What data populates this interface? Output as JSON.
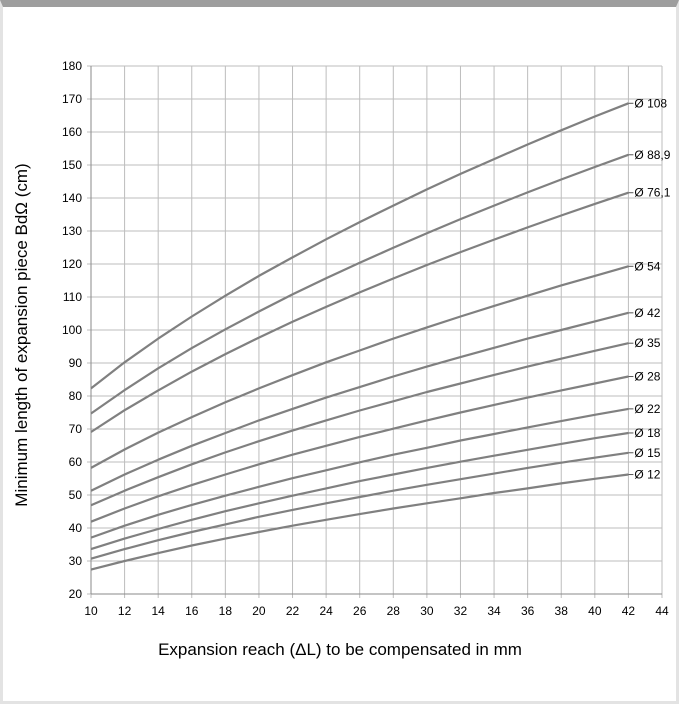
{
  "chart_data": {
    "type": "line",
    "xlabel": "Expansion reach (ΔL) to be compensated in mm",
    "ylabel": "Minimum length of expansion piece BdΩ (cm)",
    "xlim": [
      10,
      44
    ],
    "ylim": [
      20,
      180
    ],
    "xticks": [
      10,
      12,
      14,
      16,
      18,
      20,
      22,
      24,
      26,
      28,
      30,
      32,
      34,
      36,
      38,
      40,
      42,
      44
    ],
    "yticks": [
      20,
      30,
      40,
      50,
      60,
      70,
      80,
      90,
      100,
      110,
      120,
      130,
      140,
      150,
      160,
      170,
      180
    ],
    "grid": true,
    "line_color": "#808080",
    "x": [
      10,
      12,
      14,
      16,
      18,
      20,
      22,
      24,
      26,
      28,
      30,
      32,
      34,
      36,
      38,
      40,
      42
    ],
    "series": [
      {
        "name": "Ø 108",
        "values": [
          82.3,
          90.2,
          97.4,
          104.1,
          110.4,
          116.4,
          122.0,
          127.5,
          132.7,
          137.7,
          142.6,
          147.3,
          151.8,
          156.2,
          160.5,
          164.7,
          168.7
        ]
      },
      {
        "name": "Ø 88,9",
        "values": [
          74.7,
          81.8,
          88.4,
          94.5,
          100.2,
          105.6,
          110.8,
          115.7,
          120.4,
          124.9,
          129.3,
          133.6,
          137.7,
          141.7,
          145.6,
          149.4,
          153.1
        ]
      },
      {
        "name": "Ø 76,1",
        "values": [
          69.1,
          75.7,
          81.7,
          87.4,
          92.7,
          97.7,
          102.5,
          107.0,
          111.4,
          115.6,
          119.7,
          123.6,
          127.4,
          131.1,
          134.7,
          138.2,
          141.6
        ]
      },
      {
        "name": "Ø 54",
        "values": [
          58.2,
          63.8,
          68.9,
          73.6,
          78.1,
          82.3,
          86.3,
          90.2,
          93.8,
          97.4,
          100.8,
          104.1,
          107.3,
          110.4,
          113.5,
          116.4,
          119.3
        ]
      },
      {
        "name": "Ø 42",
        "values": [
          51.3,
          56.2,
          60.7,
          64.9,
          68.8,
          72.6,
          76.1,
          79.5,
          82.7,
          85.9,
          88.9,
          91.8,
          94.6,
          97.4,
          100.0,
          102.6,
          105.2
        ]
      },
      {
        "name": "Ø 35",
        "values": [
          46.9,
          51.3,
          55.4,
          59.3,
          62.9,
          66.3,
          69.5,
          72.6,
          75.6,
          78.4,
          81.2,
          83.8,
          86.4,
          88.9,
          91.3,
          93.7,
          96.0
        ]
      },
      {
        "name": "Ø 28",
        "values": [
          41.9,
          45.9,
          49.6,
          53.0,
          56.2,
          59.3,
          62.2,
          64.9,
          67.6,
          70.1,
          72.6,
          75.0,
          77.3,
          79.5,
          81.7,
          83.8,
          85.9
        ]
      },
      {
        "name": "Ø 22",
        "values": [
          37.1,
          40.7,
          44.0,
          47.0,
          49.8,
          52.5,
          55.1,
          57.5,
          59.9,
          62.2,
          64.3,
          66.5,
          68.5,
          70.5,
          72.4,
          74.3,
          76.1
        ]
      },
      {
        "name": "Ø 18",
        "values": [
          33.6,
          36.8,
          39.7,
          42.5,
          45.1,
          47.5,
          49.8,
          52.0,
          54.2,
          56.2,
          58.2,
          60.1,
          61.9,
          63.7,
          65.5,
          67.2,
          68.8
        ]
      },
      {
        "name": "Ø 15",
        "values": [
          30.7,
          33.6,
          36.3,
          38.8,
          41.1,
          43.4,
          45.5,
          47.5,
          49.4,
          51.3,
          53.1,
          54.8,
          56.5,
          58.2,
          59.8,
          61.3,
          62.8
        ]
      },
      {
        "name": "Ø 12",
        "values": [
          27.4,
          30.0,
          32.4,
          34.7,
          36.8,
          38.8,
          40.7,
          42.5,
          44.2,
          45.9,
          47.5,
          49.0,
          50.6,
          52.0,
          53.5,
          54.9,
          56.2
        ]
      }
    ]
  }
}
